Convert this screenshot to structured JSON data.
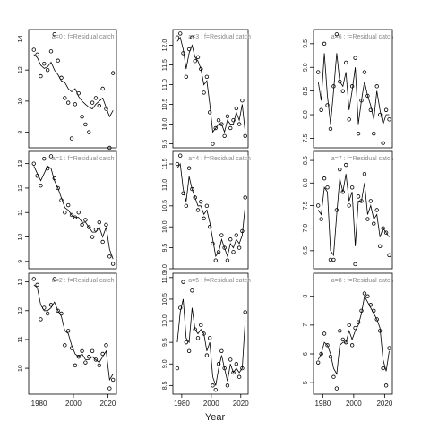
{
  "xlabel": "Year",
  "chart_data": [
    {
      "type": "line",
      "title": "a=0 : f=Residual catch",
      "x": [
        1977,
        1979,
        1981,
        1983,
        1985,
        1987,
        1989,
        1991,
        1993,
        1995,
        1997,
        1999,
        2001,
        2003,
        2005,
        2007,
        2009,
        2011,
        2013,
        2015,
        2017,
        2019,
        2021,
        2023
      ],
      "xlim": [
        1974,
        2025
      ],
      "ylim": [
        7,
        14.6
      ],
      "yticks": [
        8,
        10,
        12,
        14
      ],
      "series": [
        {
          "style": "points",
          "values": [
            13.3,
            13.0,
            11.6,
            12.4,
            12.0,
            13.2,
            14.3,
            12.6,
            11.5,
            10.2,
            9.9,
            7.6,
            9.8,
            10.5,
            9.0,
            8.5,
            8.0,
            9.9,
            10.2,
            9.7,
            10.8,
            9.5,
            7.0,
            11.8
          ]
        },
        {
          "style": "line",
          "values": [
            13.0,
            12.8,
            12.3,
            12.1,
            12.2,
            12.5,
            12.0,
            11.7,
            11.3,
            11.2,
            10.8,
            10.6,
            10.8,
            10.3,
            10.0,
            9.8,
            9.6,
            9.5,
            9.8,
            10.0,
            10.2,
            9.6,
            9.0,
            9.4
          ]
        }
      ]
    },
    {
      "type": "line",
      "title": "a=1 : f=Residual catch",
      "x": [
        1977,
        1979,
        1981,
        1983,
        1985,
        1987,
        1989,
        1991,
        1993,
        1995,
        1997,
        1999,
        2001,
        2003,
        2005,
        2007,
        2009,
        2011,
        2013,
        2015,
        2017,
        2019,
        2021,
        2023
      ],
      "xlim": [
        1974,
        2025
      ],
      "ylim": [
        8.7,
        13.5
      ],
      "yticks": [
        9,
        10,
        11,
        12,
        13
      ],
      "series": [
        {
          "style": "points",
          "values": [
            13.0,
            12.5,
            12.1,
            13.2,
            12.8,
            13.3,
            12.4,
            12.0,
            11.5,
            11.0,
            11.3,
            10.9,
            10.8,
            11.0,
            10.5,
            10.7,
            10.4,
            10.0,
            10.3,
            10.6,
            9.8,
            10.5,
            9.2,
            8.9
          ]
        },
        {
          "style": "line",
          "values": [
            12.9,
            12.6,
            12.3,
            12.6,
            12.9,
            12.8,
            12.3,
            12.0,
            11.6,
            11.2,
            11.1,
            10.9,
            10.8,
            10.8,
            10.6,
            10.6,
            10.4,
            10.2,
            10.2,
            10.4,
            10.0,
            10.4,
            9.5,
            9.1
          ]
        }
      ]
    },
    {
      "type": "line",
      "title": "a=2 : f=Residual catch",
      "x": [
        1977,
        1979,
        1981,
        1983,
        1985,
        1987,
        1989,
        1991,
        1993,
        1995,
        1997,
        1999,
        2001,
        2003,
        2005,
        2007,
        2009,
        2011,
        2013,
        2015,
        2017,
        2019,
        2021,
        2023
      ],
      "xlim": [
        1974,
        2025
      ],
      "ylim": [
        9.1,
        13.3
      ],
      "xticks": [
        1980,
        2000,
        2020
      ],
      "yticks": [
        10,
        11,
        12,
        13
      ],
      "series": [
        {
          "style": "points",
          "values": [
            13.1,
            12.9,
            11.7,
            12.1,
            11.9,
            12.2,
            13.1,
            12.0,
            11.9,
            10.8,
            11.3,
            10.7,
            10.1,
            10.4,
            10.6,
            10.2,
            10.4,
            10.6,
            10.3,
            10.1,
            10.5,
            10.8,
            9.3,
            9.6
          ]
        },
        {
          "style": "line",
          "values": [
            12.9,
            12.8,
            12.2,
            12.0,
            12.0,
            12.1,
            12.3,
            12.0,
            11.8,
            11.3,
            11.2,
            10.8,
            10.5,
            10.4,
            10.5,
            10.3,
            10.3,
            10.4,
            10.3,
            10.2,
            10.4,
            10.6,
            9.6,
            9.8
          ]
        }
      ]
    },
    {
      "type": "line",
      "title": "a=3 : f=Residual catch",
      "x": [
        1977,
        1979,
        1981,
        1983,
        1985,
        1987,
        1989,
        1991,
        1993,
        1995,
        1997,
        1999,
        2001,
        2003,
        2005,
        2007,
        2009,
        2011,
        2013,
        2015,
        2017,
        2019,
        2021,
        2023
      ],
      "xlim": [
        1974,
        2025
      ],
      "ylim": [
        9.4,
        12.4
      ],
      "yticks": [
        {
          "value": 9.5,
          "label": "9.5"
        },
        {
          "value": 10,
          "label": "10.0"
        },
        {
          "value": 10.5,
          "label": "10.5"
        },
        {
          "value": 11,
          "label": "11.0"
        },
        {
          "value": 11.5,
          "label": "11.5"
        },
        {
          "value": 12,
          "label": "12.0"
        }
      ],
      "series": [
        {
          "style": "points",
          "values": [
            12.2,
            12.3,
            11.8,
            11.2,
            11.9,
            12.2,
            11.6,
            11.7,
            11.4,
            10.8,
            11.2,
            10.3,
            9.5,
            9.9,
            10.1,
            10.0,
            9.7,
            10.2,
            9.9,
            10.1,
            10.4,
            10.0,
            10.6,
            9.7
          ]
        },
        {
          "style": "line",
          "values": [
            12.1,
            12.2,
            11.9,
            11.4,
            11.8,
            12.0,
            11.7,
            11.6,
            11.4,
            11.0,
            11.1,
            10.5,
            9.8,
            9.9,
            10.0,
            10.0,
            9.8,
            10.1,
            10.0,
            10.0,
            10.3,
            10.1,
            10.5,
            9.8
          ]
        }
      ]
    },
    {
      "type": "line",
      "title": "a=4 : f=Residual catch",
      "x": [
        1977,
        1979,
        1981,
        1983,
        1985,
        1987,
        1989,
        1991,
        1993,
        1995,
        1997,
        1999,
        2001,
        2003,
        2005,
        2007,
        2009,
        2011,
        2013,
        2015,
        2017,
        2019,
        2021,
        2023
      ],
      "xlim": [
        1974,
        2025
      ],
      "ylim": [
        9.0,
        11.8
      ],
      "yticks": [
        {
          "value": 9,
          "label": "9.0"
        },
        9.5,
        {
          "value": 10,
          "label": "10.0"
        },
        10.5,
        {
          "value": 11,
          "label": "11.0"
        },
        11.5
      ],
      "series": [
        {
          "style": "points",
          "values": [
            11.5,
            11.7,
            10.8,
            10.5,
            11.4,
            10.9,
            10.7,
            10.4,
            10.6,
            10.2,
            10.5,
            10.0,
            9.6,
            9.2,
            9.4,
            9.8,
            9.5,
            9.2,
            9.7,
            9.4,
            9.8,
            9.5,
            9.9,
            10.7
          ]
        },
        {
          "style": "line",
          "values": [
            11.4,
            11.5,
            10.9,
            10.6,
            11.2,
            10.9,
            10.7,
            10.5,
            10.5,
            10.3,
            10.4,
            10.1,
            9.7,
            9.3,
            9.4,
            9.7,
            9.5,
            9.3,
            9.6,
            9.5,
            9.7,
            9.6,
            9.8,
            10.5
          ]
        }
      ]
    },
    {
      "type": "line",
      "title": "a=5 : f=Residual catch",
      "x": [
        1977,
        1979,
        1981,
        1983,
        1985,
        1987,
        1989,
        1991,
        1993,
        1995,
        1997,
        1999,
        2001,
        2003,
        2005,
        2007,
        2009,
        2011,
        2013,
        2015,
        2017,
        2019,
        2021,
        2023
      ],
      "xlim": [
        1974,
        2025
      ],
      "ylim": [
        8.3,
        11.1
      ],
      "xticks": [
        1980,
        2000,
        2020
      ],
      "yticks": [
        8.5,
        {
          "value": 9,
          "label": "9.0"
        },
        9.5,
        {
          "value": 10,
          "label": "10.0"
        },
        10.5,
        {
          "value": 11,
          "label": "11.0"
        }
      ],
      "series": [
        {
          "style": "points",
          "values": [
            8.9,
            10.3,
            10.9,
            9.5,
            9.3,
            10.7,
            9.8,
            9.6,
            9.9,
            9.7,
            9.2,
            9.6,
            8.5,
            8.4,
            9.0,
            9.3,
            8.9,
            8.5,
            9.1,
            8.8,
            9.0,
            8.7,
            8.9,
            10.2
          ]
        },
        {
          "style": "line",
          "values": [
            9.5,
            10.2,
            10.5,
            9.6,
            9.5,
            10.3,
            9.8,
            9.7,
            9.8,
            9.7,
            9.3,
            9.5,
            8.7,
            8.5,
            8.9,
            9.2,
            8.9,
            8.6,
            9.0,
            8.8,
            8.9,
            8.8,
            8.9,
            10.0
          ]
        }
      ]
    },
    {
      "type": "line",
      "title": "a=6 : f=Residual catch",
      "x": [
        1977,
        1979,
        1981,
        1983,
        1985,
        1987,
        1989,
        1991,
        1993,
        1995,
        1997,
        1999,
        2001,
        2003,
        2005,
        2007,
        2009,
        2011,
        2013,
        2015,
        2017,
        2019,
        2021,
        2023
      ],
      "xlim": [
        1974,
        2025
      ],
      "ylim": [
        7.3,
        9.8
      ],
      "yticks": [
        {
          "value": 7.5,
          "label": "7.5"
        },
        {
          "value": 8,
          "label": "8.0"
        },
        {
          "value": 8.5,
          "label": "8.5"
        },
        {
          "value": 9,
          "label": "9.0"
        },
        {
          "value": 9.5,
          "label": "9.5"
        }
      ],
      "series": [
        {
          "style": "points",
          "values": [
            8.9,
            8.1,
            9.5,
            8.2,
            7.7,
            8.6,
            9.7,
            8.7,
            8.5,
            9.1,
            7.9,
            8.6,
            9.2,
            7.6,
            8.3,
            8.9,
            8.4,
            8.1,
            7.6,
            8.6,
            8.0,
            7.4,
            8.1,
            7.9
          ]
        },
        {
          "style": "line",
          "values": [
            8.7,
            8.3,
            9.3,
            8.4,
            7.8,
            8.5,
            9.3,
            8.7,
            8.6,
            8.9,
            8.1,
            8.5,
            9.0,
            7.8,
            8.3,
            8.7,
            8.4,
            8.2,
            7.9,
            8.5,
            8.1,
            7.8,
            8.0,
            8.0
          ]
        }
      ]
    },
    {
      "type": "line",
      "title": "a=7 : f=Residual catch",
      "x": [
        1977,
        1979,
        1981,
        1983,
        1985,
        1987,
        1989,
        1991,
        1993,
        1995,
        1997,
        1999,
        2001,
        2003,
        2005,
        2007,
        2009,
        2011,
        2013,
        2015,
        2017,
        2019,
        2021,
        2023
      ],
      "xlim": [
        1974,
        2025
      ],
      "ylim": [
        6.1,
        8.7
      ],
      "yticks": [
        {
          "value": 6.5,
          "label": "6.5"
        },
        {
          "value": 7,
          "label": "7.0"
        },
        {
          "value": 7.5,
          "label": "7.5"
        },
        {
          "value": 8,
          "label": "8.0"
        },
        {
          "value": 8.5,
          "label": "8.5"
        }
      ],
      "series": [
        {
          "style": "points",
          "values": [
            7.5,
            7.2,
            8.1,
            7.9,
            6.3,
            6.3,
            7.4,
            8.3,
            7.8,
            8.4,
            7.5,
            7.9,
            6.2,
            7.7,
            7.6,
            8.2,
            7.2,
            7.6,
            7.1,
            7.4,
            6.6,
            7.0,
            6.9,
            6.4
          ]
        },
        {
          "style": "line",
          "values": [
            7.4,
            7.3,
            7.9,
            7.8,
            6.5,
            6.4,
            7.3,
            8.1,
            7.8,
            8.2,
            7.6,
            7.8,
            6.6,
            7.6,
            7.6,
            8.0,
            7.3,
            7.5,
            7.2,
            7.3,
            6.8,
            7.0,
            6.9,
            6.8
          ]
        }
      ]
    },
    {
      "type": "line",
      "title": "a=8 : f=Residual catch",
      "x": [
        1977,
        1979,
        1981,
        1983,
        1985,
        1987,
        1989,
        1991,
        1993,
        1995,
        1997,
        1999,
        2001,
        2003,
        2005,
        2007,
        2009,
        2011,
        2013,
        2015,
        2017,
        2019,
        2021,
        2023
      ],
      "xlim": [
        1974,
        2025
      ],
      "ylim": [
        4.6,
        8.8
      ],
      "xticks": [
        1980,
        2000,
        2020
      ],
      "yticks": [
        5,
        6,
        7,
        8
      ],
      "series": [
        {
          "style": "points",
          "values": [
            5.7,
            6.0,
            6.7,
            6.3,
            5.9,
            5.2,
            4.8,
            6.8,
            6.5,
            6.4,
            7.0,
            6.3,
            6.9,
            7.1,
            7.5,
            8.1,
            8.0,
            7.7,
            7.5,
            7.2,
            6.8,
            5.5,
            4.9,
            6.2
          ]
        },
        {
          "style": "line",
          "values": [
            5.8,
            6.0,
            6.4,
            6.3,
            6.0,
            5.5,
            5.3,
            6.3,
            6.4,
            6.4,
            6.8,
            6.5,
            6.8,
            7.0,
            7.4,
            8.0,
            7.8,
            7.6,
            7.4,
            7.2,
            6.9,
            5.8,
            5.4,
            6.1
          ]
        }
      ]
    }
  ]
}
